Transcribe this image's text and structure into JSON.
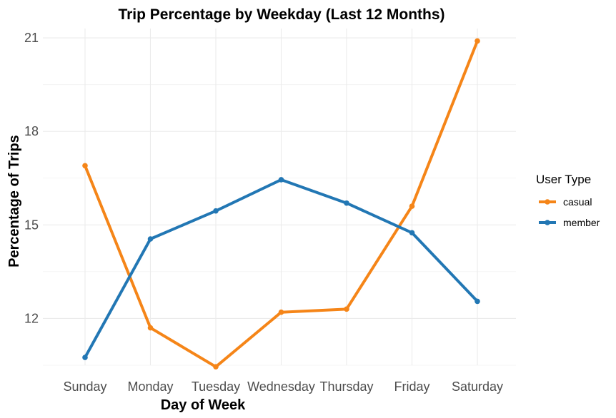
{
  "chart_data": {
    "type": "line",
    "title": "Trip Percentage by Weekday (Last 12 Months)",
    "xlabel": "Day of Week",
    "ylabel": "Percentage of Trips",
    "categories": [
      "Sunday",
      "Monday",
      "Tuesday",
      "Wednesday",
      "Thursday",
      "Friday",
      "Saturday"
    ],
    "yticks": [
      12,
      15,
      18,
      21
    ],
    "ylim": [
      10.5,
      21.3
    ],
    "grid": true,
    "legend": {
      "title": "User Type",
      "position": "right"
    },
    "series": [
      {
        "name": "casual",
        "color": "#F58518",
        "values": [
          16.9,
          11.7,
          10.45,
          12.2,
          12.3,
          15.6,
          20.9
        ]
      },
      {
        "name": "member",
        "color": "#2277B4",
        "values": [
          10.75,
          14.55,
          15.45,
          16.45,
          15.7,
          14.75,
          12.55
        ]
      }
    ]
  }
}
